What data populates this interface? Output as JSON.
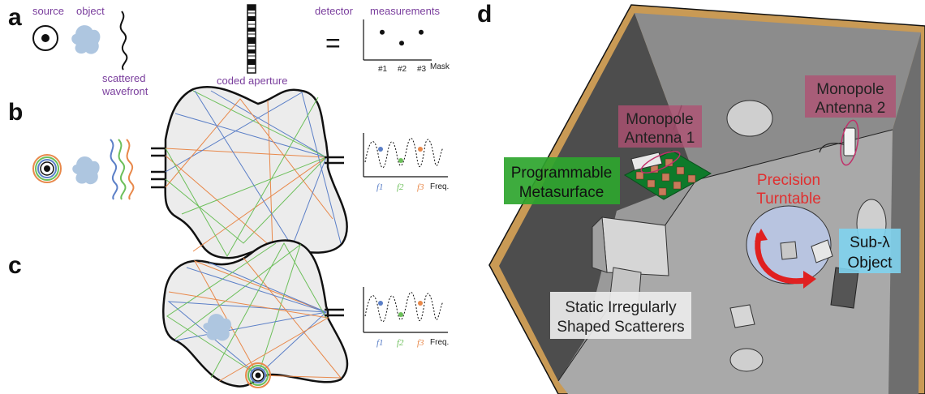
{
  "panels": {
    "a": {
      "letter": "a",
      "source_label": "source",
      "object_label": "object",
      "wavefront_label_1": "scattered",
      "wavefront_label_2": "wavefront",
      "aperture_label": "coded aperture",
      "detector_label": "detector",
      "measurements_label": "measurements",
      "equals": "=",
      "ticks": [
        "#1",
        "#2",
        "#3"
      ],
      "axis_label": "Mask",
      "points": [
        0.72,
        0.4,
        0.72
      ]
    },
    "b": {
      "letter": "b",
      "freq_ticks": [
        "f1",
        "f2",
        "f3"
      ],
      "freq_label": "Freq."
    },
    "c": {
      "letter": "c",
      "freq_ticks": [
        "f1",
        "f2",
        "f3"
      ],
      "freq_label": "Freq."
    },
    "d": {
      "letter": "d",
      "callouts": {
        "antenna1": [
          "Monopole",
          "Antenna 1"
        ],
        "antenna2": [
          "Monopole",
          "Antenna 2"
        ],
        "metasurface": [
          "Programmable",
          "Metasurface"
        ],
        "turntable": [
          "Precision",
          "Turntable"
        ],
        "object": [
          "Sub-λ",
          "Object"
        ],
        "scatterers": [
          "Static Irregularly",
          "Shaped Scatterers"
        ]
      }
    }
  },
  "colors": {
    "purple": "#7a3e9d",
    "ray_blue": "#5b7fc7",
    "ray_orange": "#e8884a",
    "ray_green": "#6cbf5a",
    "object_blue": "#aec6e0",
    "callout_green": "#2ea52e",
    "callout_red": "#e03030",
    "callout_pink": "#b04f72",
    "callout_cyan": "#7fd3ee"
  }
}
